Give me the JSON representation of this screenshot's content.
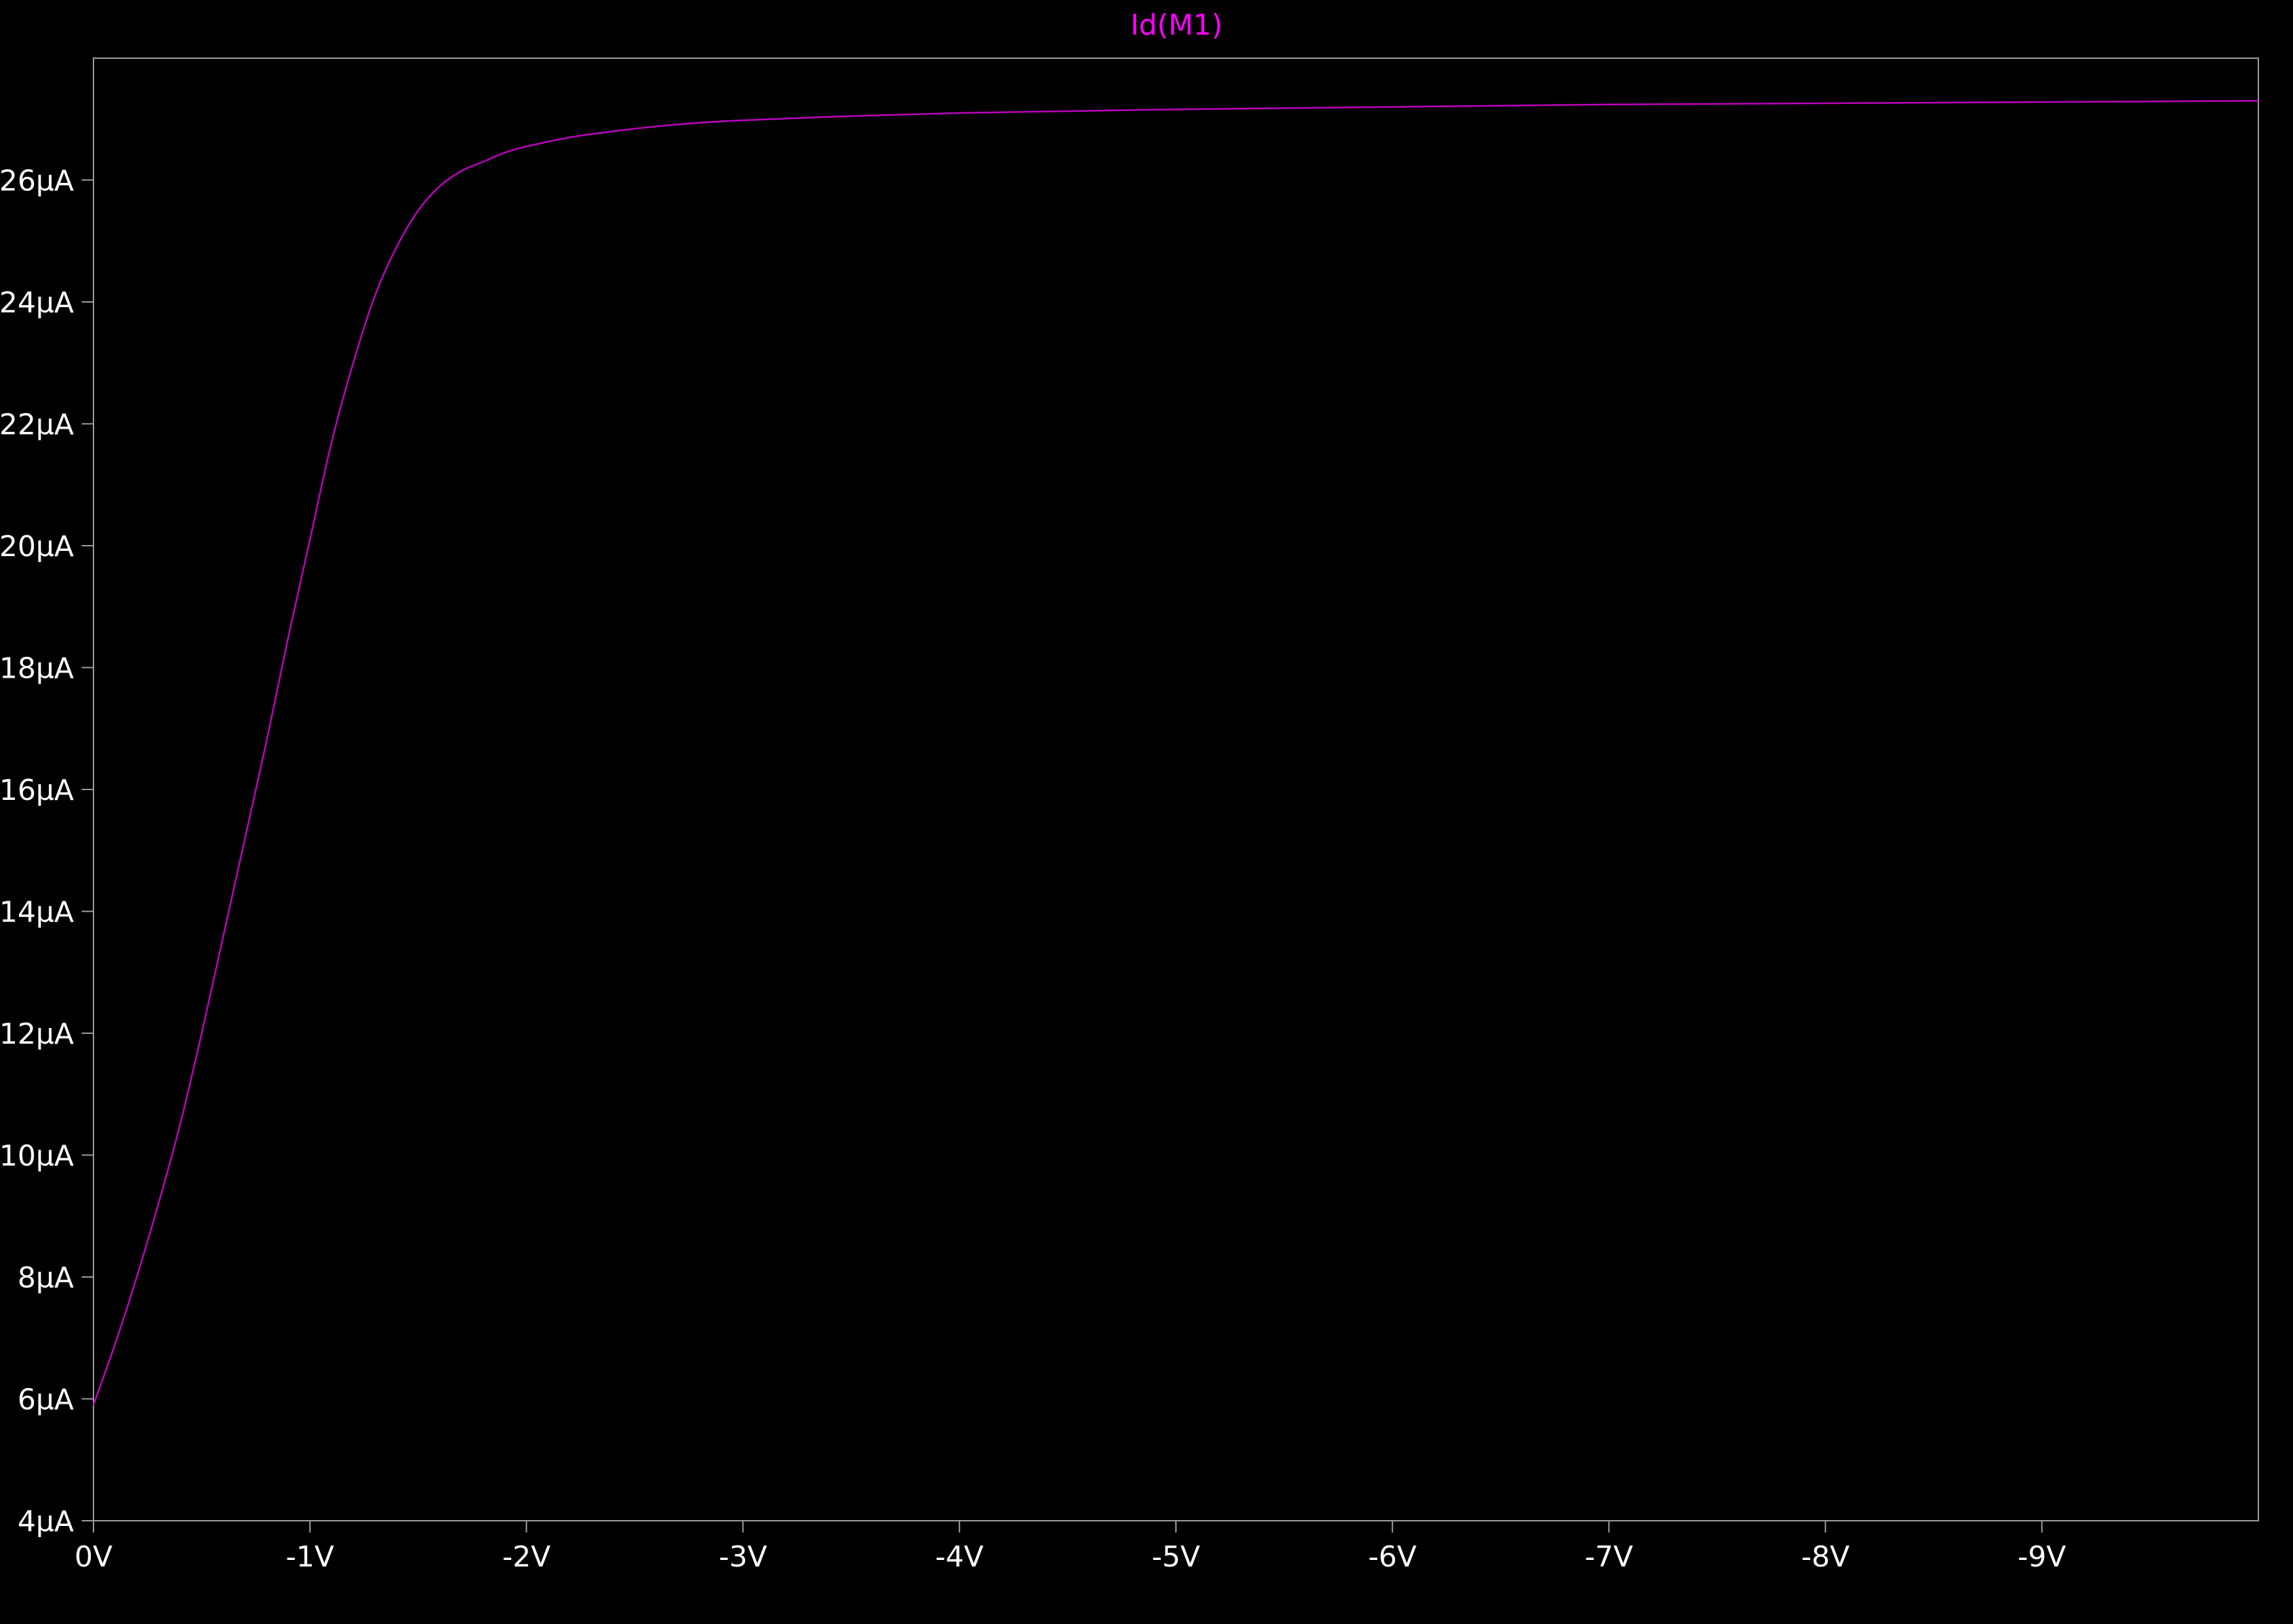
{
  "chart_data": {
    "type": "line",
    "title": "Id(M1)",
    "title_color": "#ff00ff",
    "background_color": "#000000",
    "frame_color": "#a0a0a0",
    "text_color": "#ffffff",
    "grid": false,
    "xlim": [
      0,
      -10
    ],
    "ylim": [
      4,
      28
    ],
    "x_ticks": [
      0,
      -1,
      -2,
      -3,
      -4,
      -5,
      -6,
      -7,
      -8,
      -9
    ],
    "x_tick_labels": [
      "0V",
      "-1V",
      "-2V",
      "-3V",
      "-4V",
      "-5V",
      "-6V",
      "-7V",
      "-8V",
      "-9V"
    ],
    "y_ticks": [
      4,
      6,
      8,
      10,
      12,
      14,
      16,
      18,
      20,
      22,
      24,
      26
    ],
    "y_tick_labels": [
      "4µA",
      "6µA",
      "8µA",
      "10µA",
      "12µA",
      "14µA",
      "16µA",
      "18µA",
      "20µA",
      "22µA",
      "24µA",
      "26µA"
    ],
    "series": [
      {
        "name": "Id(M1)",
        "color": "#c000c0",
        "x": [
          0,
          -0.1,
          -0.2,
          -0.3,
          -0.4,
          -0.5,
          -0.6,
          -0.7,
          -0.8,
          -0.9,
          -1.0,
          -1.1,
          -1.2,
          -1.3,
          -1.4,
          -1.5,
          -1.6,
          -1.7,
          -1.8,
          -1.9,
          -2.0,
          -2.2,
          -2.4,
          -2.6,
          -2.8,
          -3.0,
          -3.5,
          -4.0,
          -4.5,
          -5.0,
          -5.5,
          -6.0,
          -6.5,
          -7.0,
          -7.5,
          -8.0,
          -8.5,
          -9.0,
          -9.5,
          -10.0
        ],
        "y": [
          5.9,
          6.9,
          8.0,
          9.2,
          10.5,
          12.0,
          13.6,
          15.2,
          16.8,
          18.5,
          20.1,
          21.7,
          23.0,
          24.1,
          24.9,
          25.5,
          25.9,
          26.15,
          26.3,
          26.45,
          26.55,
          26.7,
          26.8,
          26.88,
          26.94,
          26.98,
          27.05,
          27.1,
          27.13,
          27.16,
          27.18,
          27.2,
          27.22,
          27.24,
          27.25,
          27.26,
          27.27,
          27.28,
          27.29,
          27.3
        ]
      }
    ]
  }
}
